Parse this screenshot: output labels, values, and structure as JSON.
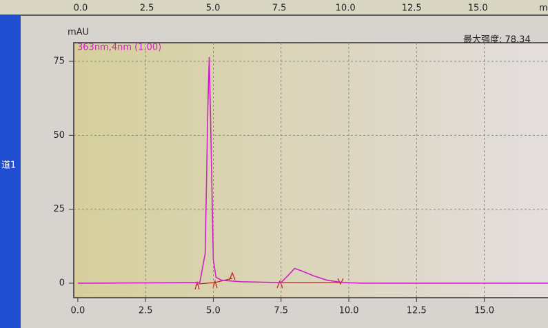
{
  "sidebar_label": "道1",
  "max_intensity_label": "最大强度: 78,34",
  "top_panel": {
    "xlabel": "mi",
    "xlim": [
      0,
      17.65
    ],
    "xticks": [
      {
        "value": 0,
        "label": "0.0"
      },
      {
        "value": 2.5,
        "label": "2.5"
      },
      {
        "value": 5,
        "label": "5.0"
      },
      {
        "value": 7.5,
        "label": "7.5"
      },
      {
        "value": 10,
        "label": "10.0"
      },
      {
        "value": 12.5,
        "label": "12.5"
      },
      {
        "value": 15,
        "label": "15.0"
      }
    ]
  },
  "chart_data": {
    "type": "line",
    "ylabel": "mAU",
    "series": [
      {
        "name": "363nm,4nm (1.00)",
        "color": "#d020c8",
        "x": [
          0,
          4.5,
          4.7,
          4.8,
          4.85,
          4.9,
          5.0,
          5.1,
          5.3,
          6.0,
          7.5,
          7.8,
          8.0,
          8.3,
          8.7,
          9.2,
          9.8,
          10.5,
          17.35
        ],
        "values": [
          0,
          0.2,
          10,
          60,
          76.5,
          55,
          8,
          2,
          1,
          0.5,
          0.2,
          3,
          5,
          4,
          2.5,
          1,
          0.2,
          0,
          0
        ]
      }
    ],
    "xlim": [
      -0.15,
      17.35
    ],
    "ylim": [
      -4.9,
      81.3
    ],
    "xticks": [
      {
        "value": 0,
        "label": "0.0"
      },
      {
        "value": 2.5,
        "label": "2.5"
      },
      {
        "value": 5,
        "label": "5.0"
      },
      {
        "value": 7.5,
        "label": "7.5"
      },
      {
        "value": 10,
        "label": "10.0"
      },
      {
        "value": 12.5,
        "label": "12.5"
      },
      {
        "value": 15,
        "label": "15.0"
      }
    ],
    "yticks": [
      0,
      25,
      50,
      75
    ],
    "grid": true
  }
}
